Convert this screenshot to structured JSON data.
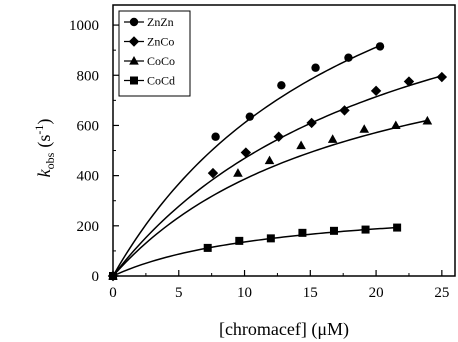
{
  "chart_data": {
    "type": "scatter",
    "xlabel": "[chromacef] (μM)",
    "ylabel_main": "k",
    "ylabel_sub": "obs",
    "ylabel_unit": "(s",
    "ylabel_exp": "-1",
    "ylabel_close": ")",
    "xlim": [
      0,
      26
    ],
    "ylim": [
      0,
      1080
    ],
    "x_ticks": [
      0,
      5,
      10,
      15,
      20,
      25
    ],
    "y_ticks": [
      0,
      200,
      400,
      600,
      800,
      1000
    ],
    "grid": false,
    "legend_position": "top-left",
    "series": [
      {
        "name": "ZnZn",
        "marker": "circle",
        "points": [
          [
            0,
            0
          ],
          [
            7.8,
            555
          ],
          [
            10.4,
            635
          ],
          [
            12.8,
            760
          ],
          [
            15.4,
            830
          ],
          [
            17.9,
            870
          ],
          [
            20.3,
            915
          ]
        ],
        "fit": {
          "vmax": 1800,
          "km": 19.5,
          "xmax": 20.3
        }
      },
      {
        "name": "ZnCo",
        "marker": "diamond",
        "points": [
          [
            0,
            0
          ],
          [
            7.6,
            410
          ],
          [
            10.1,
            492
          ],
          [
            12.6,
            555
          ],
          [
            15.1,
            610
          ],
          [
            17.6,
            660
          ],
          [
            20.0,
            738
          ],
          [
            22.5,
            775
          ],
          [
            25.0,
            793
          ]
        ],
        "fit": {
          "vmax": 1500,
          "km": 22.0,
          "xmax": 25.0
        }
      },
      {
        "name": "CoCo",
        "marker": "triangle",
        "points": [
          [
            0,
            0
          ],
          [
            9.5,
            410
          ],
          [
            11.9,
            460
          ],
          [
            14.3,
            520
          ],
          [
            16.7,
            545
          ],
          [
            19.1,
            585
          ],
          [
            21.5,
            600
          ],
          [
            23.9,
            618
          ]
        ],
        "fit": {
          "vmax": 1100,
          "km": 18.5,
          "xmax": 24.0
        }
      },
      {
        "name": "CoCd",
        "marker": "square",
        "points": [
          [
            0,
            0
          ],
          [
            7.2,
            112
          ],
          [
            9.6,
            140
          ],
          [
            12.0,
            150
          ],
          [
            14.4,
            172
          ],
          [
            16.8,
            180
          ],
          [
            19.2,
            185
          ],
          [
            21.6,
            193
          ]
        ],
        "fit": {
          "vmax": 305,
          "km": 12.5,
          "xmax": 21.6
        }
      }
    ]
  }
}
